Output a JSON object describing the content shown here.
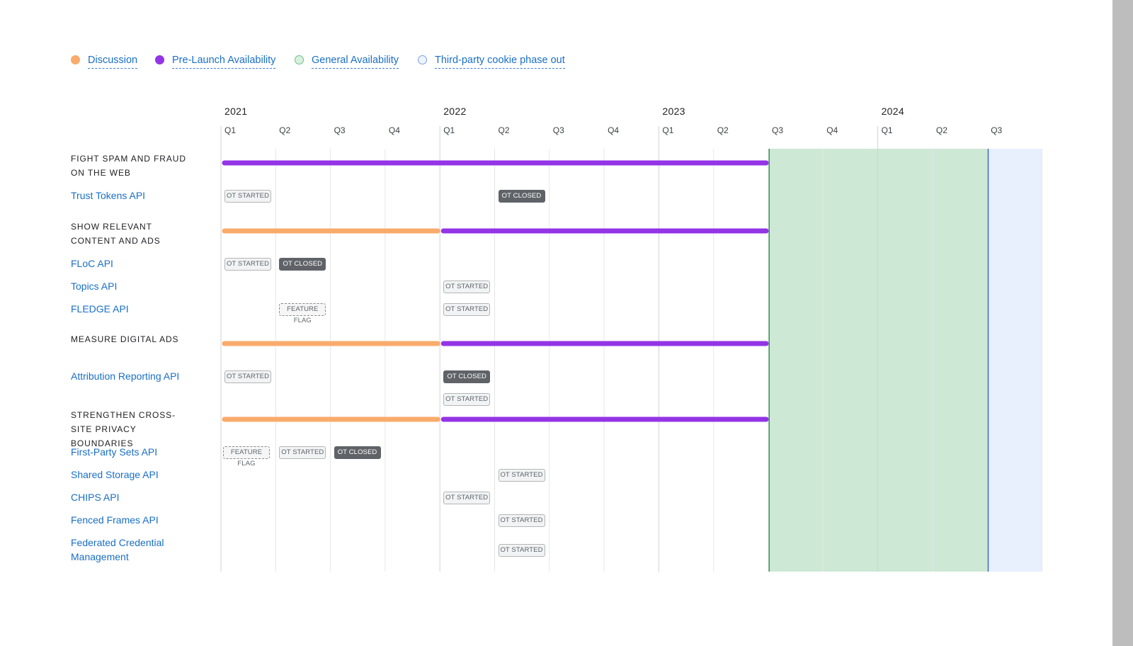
{
  "chart_data": {
    "type": "timeline",
    "legend": [
      {
        "key": "discussion",
        "label": "Discussion",
        "color": "#f9ab6b"
      },
      {
        "key": "prelaunch",
        "label": "Pre-Launch Availability",
        "color": "#9334e6"
      },
      {
        "key": "ga",
        "label": "General Availability",
        "color": "#cde8d5"
      },
      {
        "key": "cookie",
        "label": "Third-party cookie phase out",
        "color": "#e8f0fe"
      }
    ],
    "years": [
      "2021",
      "2022",
      "2023",
      "2024"
    ],
    "quarters": [
      "Q1",
      "Q2",
      "Q3",
      "Q4",
      "Q1",
      "Q2",
      "Q3",
      "Q4",
      "Q1",
      "Q2",
      "Q3",
      "Q4",
      "Q1",
      "Q2",
      "Q3"
    ],
    "periods": [
      {
        "phase": "ga",
        "start": "2023 Q3",
        "end": "2024 Q2"
      },
      {
        "phase": "cookie",
        "start": "2024 Q3",
        "end": "2024 Q3"
      }
    ],
    "groups": [
      {
        "title": "Fight spam and fraud on the web",
        "phases": [
          {
            "phase": "prelaunch",
            "start": "2021 Q1",
            "end": "2023 Q2"
          }
        ],
        "apis": [
          {
            "name": "Trust Tokens API",
            "events": [
              {
                "label": "OT started",
                "kind": "started",
                "quarter": "2021 Q1"
              },
              {
                "label": "OT closed",
                "kind": "closed",
                "quarter": "2022 Q2"
              }
            ]
          }
        ]
      },
      {
        "title": "Show relevant content and ads",
        "phases": [
          {
            "phase": "discussion",
            "start": "2021 Q1",
            "end": "2021 Q4"
          },
          {
            "phase": "prelaunch",
            "start": "2022 Q1",
            "end": "2023 Q2"
          }
        ],
        "apis": [
          {
            "name": "FLoC API",
            "events": [
              {
                "label": "OT started",
                "kind": "started",
                "quarter": "2021 Q1"
              },
              {
                "label": "OT closed",
                "kind": "closed",
                "quarter": "2021 Q2"
              }
            ]
          },
          {
            "name": "Topics API",
            "events": [
              {
                "label": "OT started",
                "kind": "started",
                "quarter": "2022 Q1"
              }
            ]
          },
          {
            "name": "FLEDGE API",
            "events": [
              {
                "label": "Feature flag",
                "kind": "flag",
                "quarter": "2021 Q2"
              },
              {
                "label": "OT started",
                "kind": "started",
                "quarter": "2022 Q1"
              }
            ]
          }
        ]
      },
      {
        "title": "Measure digital ads",
        "phases": [
          {
            "phase": "discussion",
            "start": "2021 Q1",
            "end": "2021 Q4"
          },
          {
            "phase": "prelaunch",
            "start": "2022 Q1",
            "end": "2023 Q2"
          }
        ],
        "apis": [
          {
            "name": "Attribution Reporting API",
            "events": [
              {
                "label": "OT started",
                "kind": "started",
                "quarter": "2021 Q1"
              },
              {
                "label": "OT closed",
                "kind": "closed",
                "quarter": "2022 Q1"
              },
              {
                "label": "OT started",
                "kind": "started",
                "quarter": "2022 Q1",
                "extra_line": true
              }
            ]
          }
        ]
      },
      {
        "title": "Strengthen cross-site privacy boundaries",
        "phases": [
          {
            "phase": "discussion",
            "start": "2021 Q1",
            "end": "2021 Q4"
          },
          {
            "phase": "prelaunch",
            "start": "2022 Q1",
            "end": "2023 Q2"
          }
        ],
        "apis": [
          {
            "name": "First-Party Sets API",
            "events": [
              {
                "label": "Feature flag",
                "kind": "flag",
                "quarter": "2021 Q1"
              },
              {
                "label": "OT started",
                "kind": "started",
                "quarter": "2021 Q2"
              },
              {
                "label": "OT closed",
                "kind": "closed",
                "quarter": "2021 Q3"
              }
            ]
          },
          {
            "name": "Shared Storage API",
            "events": [
              {
                "label": "OT started",
                "kind": "started",
                "quarter": "2022 Q2"
              }
            ]
          },
          {
            "name": "CHIPS API",
            "events": [
              {
                "label": "OT started",
                "kind": "started",
                "quarter": "2022 Q1"
              }
            ]
          },
          {
            "name": "Fenced Frames API",
            "events": [
              {
                "label": "OT started",
                "kind": "started",
                "quarter": "2022 Q2"
              }
            ]
          },
          {
            "name": "Federated Credential Management",
            "events": [
              {
                "label": "OT started",
                "kind": "started",
                "quarter": "2022 Q2"
              }
            ]
          }
        ]
      }
    ]
  }
}
